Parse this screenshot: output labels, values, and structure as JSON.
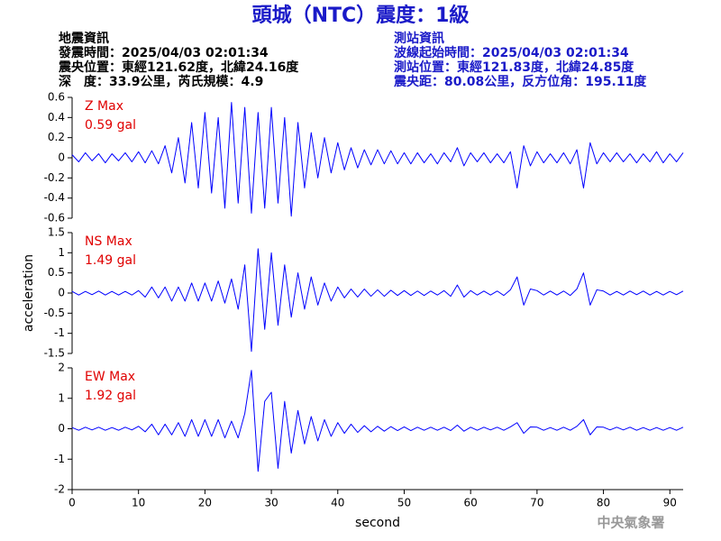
{
  "header": {
    "title": "頭城（NTC）震度：1級",
    "left": [
      "地震資訊",
      "發震時間：2025/04/03 02:01:34",
      "震央位置：東經121.62度，北緯24.16度",
      "深　度：33.9公里，芮氏規模：4.9"
    ],
    "right": [
      "測站資訊",
      "波線起始時間：2025/04/03 02:01:34",
      "測站位置：東經121.83度，北緯24.85度",
      "震央距：80.08公里，反方位角：195.11度"
    ]
  },
  "footer": "中央氣象署",
  "chart_data": [
    {
      "type": "line",
      "annotations": [
        "Z Max",
        "0.59 gal"
      ],
      "annotation_color": "#e00000",
      "xlim": [
        0,
        92
      ],
      "ylim": [
        -0.6,
        0.6
      ],
      "yticks": [
        -0.6,
        -0.4,
        -0.2,
        0,
        0.2,
        0.4,
        0.6
      ],
      "x": [
        0,
        1,
        2,
        3,
        4,
        5,
        6,
        7,
        8,
        9,
        10,
        11,
        12,
        13,
        14,
        15,
        16,
        17,
        18,
        19,
        20,
        21,
        22,
        23,
        24,
        25,
        26,
        27,
        28,
        29,
        30,
        31,
        32,
        33,
        34,
        35,
        36,
        37,
        38,
        39,
        40,
        41,
        42,
        43,
        44,
        45,
        46,
        47,
        48,
        49,
        50,
        51,
        52,
        53,
        54,
        55,
        56,
        57,
        58,
        59,
        60,
        61,
        62,
        63,
        64,
        65,
        66,
        67,
        68,
        69,
        70,
        71,
        72,
        73,
        74,
        75,
        76,
        77,
        78,
        79,
        80,
        81,
        82,
        83,
        84,
        85,
        86,
        87,
        88,
        89,
        90,
        91,
        92
      ],
      "series": [
        {
          "color": "#0000ff",
          "values": [
            0.03,
            -0.04,
            0.05,
            -0.03,
            0.04,
            -0.05,
            0.04,
            -0.03,
            0.05,
            -0.04,
            0.06,
            -0.05,
            0.07,
            -0.06,
            0.12,
            -0.15,
            0.2,
            -0.25,
            0.35,
            -0.3,
            0.45,
            -0.35,
            0.4,
            -0.5,
            0.55,
            -0.45,
            0.5,
            -0.55,
            0.45,
            -0.5,
            0.5,
            -0.45,
            0.4,
            -0.58,
            0.35,
            -0.3,
            0.25,
            -0.2,
            0.2,
            -0.15,
            0.15,
            -0.12,
            0.1,
            -0.1,
            0.08,
            -0.07,
            0.08,
            -0.06,
            0.07,
            -0.06,
            0.05,
            -0.06,
            0.05,
            -0.05,
            0.04,
            -0.06,
            0.05,
            -0.04,
            0.1,
            -0.08,
            0.05,
            -0.04,
            0.05,
            -0.05,
            0.04,
            -0.05,
            0.06,
            -0.3,
            0.12,
            -0.08,
            0.06,
            -0.05,
            0.04,
            -0.05,
            0.05,
            -0.06,
            0.08,
            -0.3,
            0.15,
            -0.06,
            0.05,
            -0.04,
            0.05,
            -0.04,
            0.04,
            -0.05,
            0.04,
            -0.04,
            0.06,
            -0.05,
            0.04,
            -0.04,
            0.05
          ]
        }
      ]
    },
    {
      "type": "line",
      "annotations": [
        "NS Max",
        "1.49 gal"
      ],
      "annotation_color": "#e00000",
      "ylabel": "acceleration",
      "xlim": [
        0,
        92
      ],
      "ylim": [
        -1.5,
        1.5
      ],
      "yticks": [
        -1.5,
        -1,
        -0.5,
        0,
        0.5,
        1,
        1.5
      ],
      "x": [
        0,
        1,
        2,
        3,
        4,
        5,
        6,
        7,
        8,
        9,
        10,
        11,
        12,
        13,
        14,
        15,
        16,
        17,
        18,
        19,
        20,
        21,
        22,
        23,
        24,
        25,
        26,
        27,
        28,
        29,
        30,
        31,
        32,
        33,
        34,
        35,
        36,
        37,
        38,
        39,
        40,
        41,
        42,
        43,
        44,
        45,
        46,
        47,
        48,
        49,
        50,
        51,
        52,
        53,
        54,
        55,
        56,
        57,
        58,
        59,
        60,
        61,
        62,
        63,
        64,
        65,
        66,
        67,
        68,
        69,
        70,
        71,
        72,
        73,
        74,
        75,
        76,
        77,
        78,
        79,
        80,
        81,
        82,
        83,
        84,
        85,
        86,
        87,
        88,
        89,
        90,
        91,
        92
      ],
      "series": [
        {
          "color": "#0000ff",
          "values": [
            0.04,
            -0.05,
            0.04,
            -0.04,
            0.05,
            -0.05,
            0.04,
            -0.05,
            0.04,
            -0.05,
            0.06,
            -0.1,
            0.15,
            -0.12,
            0.15,
            -0.2,
            0.15,
            -0.2,
            0.25,
            -0.2,
            0.25,
            -0.2,
            0.3,
            -0.25,
            0.35,
            -0.4,
            0.7,
            -1.45,
            1.1,
            -0.9,
            1,
            -0.8,
            0.7,
            -0.6,
            0.5,
            -0.4,
            0.4,
            -0.3,
            0.25,
            -0.2,
            0.15,
            -0.12,
            0.1,
            -0.1,
            0.1,
            -0.08,
            0.08,
            -0.08,
            0.07,
            -0.06,
            0.06,
            -0.06,
            0.05,
            -0.06,
            0.05,
            -0.05,
            0.06,
            -0.08,
            0.2,
            -0.1,
            0.06,
            -0.05,
            0.05,
            -0.05,
            0.05,
            -0.06,
            0.08,
            0.4,
            -0.3,
            0.1,
            0.06,
            -0.05,
            0.05,
            -0.05,
            0.05,
            -0.06,
            0.1,
            0.5,
            -0.3,
            0.08,
            0.05,
            -0.05,
            0.04,
            -0.05,
            0.05,
            -0.04,
            0.05,
            -0.05,
            0.04,
            -0.05,
            0.04,
            -0.04,
            0.05
          ]
        }
      ]
    },
    {
      "type": "line",
      "annotations": [
        "EW Max",
        "1.92 gal"
      ],
      "annotation_color": "#e00000",
      "xlabel": "second",
      "xlim": [
        0,
        92
      ],
      "xticks": [
        0,
        10,
        20,
        30,
        40,
        50,
        60,
        70,
        80,
        90
      ],
      "ylim": [
        -2,
        2
      ],
      "yticks": [
        -2,
        -1,
        0,
        1,
        2
      ],
      "x": [
        0,
        1,
        2,
        3,
        4,
        5,
        6,
        7,
        8,
        9,
        10,
        11,
        12,
        13,
        14,
        15,
        16,
        17,
        18,
        19,
        20,
        21,
        22,
        23,
        24,
        25,
        26,
        27,
        28,
        29,
        30,
        31,
        32,
        33,
        34,
        35,
        36,
        37,
        38,
        39,
        40,
        41,
        42,
        43,
        44,
        45,
        46,
        47,
        48,
        49,
        50,
        51,
        52,
        53,
        54,
        55,
        56,
        57,
        58,
        59,
        60,
        61,
        62,
        63,
        64,
        65,
        66,
        67,
        68,
        69,
        70,
        71,
        72,
        73,
        74,
        75,
        76,
        77,
        78,
        79,
        80,
        81,
        82,
        83,
        84,
        85,
        86,
        87,
        88,
        89,
        90,
        91,
        92
      ],
      "series": [
        {
          "color": "#0000ff",
          "values": [
            0.04,
            -0.05,
            0.05,
            -0.04,
            0.05,
            -0.05,
            0.04,
            -0.05,
            0.05,
            -0.04,
            0.08,
            -0.1,
            0.15,
            -0.2,
            0.15,
            -0.2,
            0.2,
            -0.25,
            0.3,
            -0.25,
            0.3,
            -0.25,
            0.3,
            -0.3,
            0.25,
            -0.3,
            0.5,
            1.92,
            -1.4,
            0.9,
            1.2,
            -1.3,
            0.9,
            -0.8,
            0.6,
            -0.5,
            0.4,
            -0.4,
            0.3,
            -0.25,
            0.2,
            -0.15,
            0.15,
            -0.12,
            0.1,
            -0.1,
            0.08,
            -0.08,
            0.07,
            -0.06,
            0.06,
            -0.06,
            0.05,
            -0.05,
            0.05,
            -0.05,
            0.05,
            -0.06,
            0.12,
            -0.08,
            0.05,
            -0.05,
            0.05,
            -0.04,
            0.05,
            -0.05,
            0.06,
            0.2,
            -0.15,
            0.06,
            0.05,
            -0.05,
            0.04,
            -0.05,
            0.05,
            -0.05,
            0.08,
            0.3,
            -0.2,
            0.06,
            0.05,
            -0.04,
            0.05,
            -0.04,
            0.05,
            -0.05,
            0.04,
            -0.05,
            0.04,
            -0.05,
            0.04,
            -0.05,
            0.05
          ]
        }
      ]
    }
  ]
}
